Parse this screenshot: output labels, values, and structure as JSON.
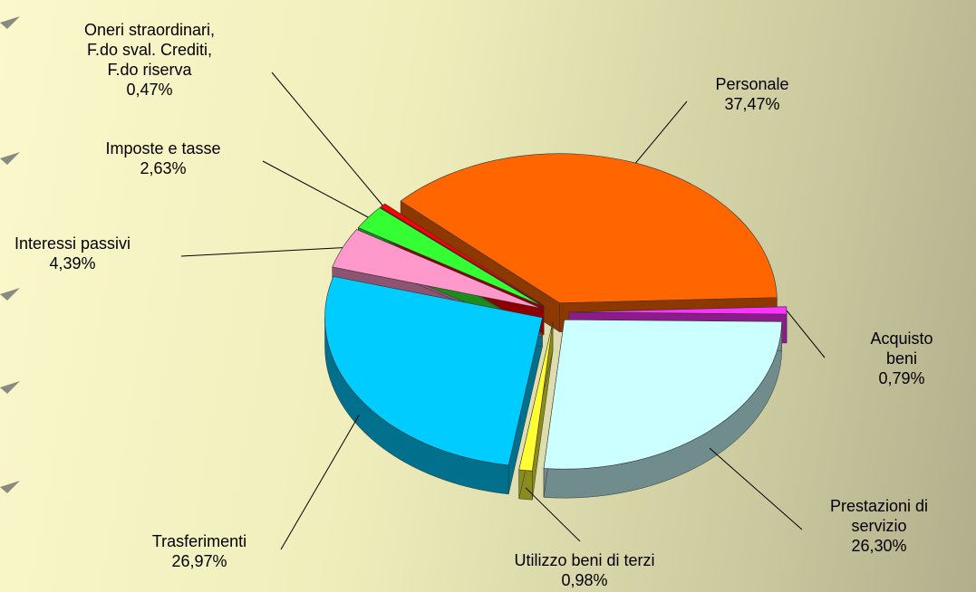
{
  "chart_data": {
    "type": "pie",
    "categories": [
      "Personale",
      "Acquisto beni",
      "Prestazioni di servizio",
      "Utilizzo beni di terzi",
      "Trasferimenti",
      "Interessi passivi",
      "Imposte e tasse",
      "Oneri straordinari, F.do sval. Crediti, F.do riserva"
    ],
    "values": [
      37.47,
      0.79,
      26.3,
      0.98,
      26.97,
      4.39,
      2.63,
      0.47
    ],
    "value_labels": [
      "37,47%",
      "0,79%",
      "26,30%",
      "0,98%",
      "26,97%",
      "4,39%",
      "2,63%",
      "0,47%"
    ],
    "colors": [
      "#ff6600",
      "#ff33ff",
      "#ccffff",
      "#ffff33",
      "#00ccff",
      "#ff99cc",
      "#33ff33",
      "#ff0000"
    ]
  }
}
